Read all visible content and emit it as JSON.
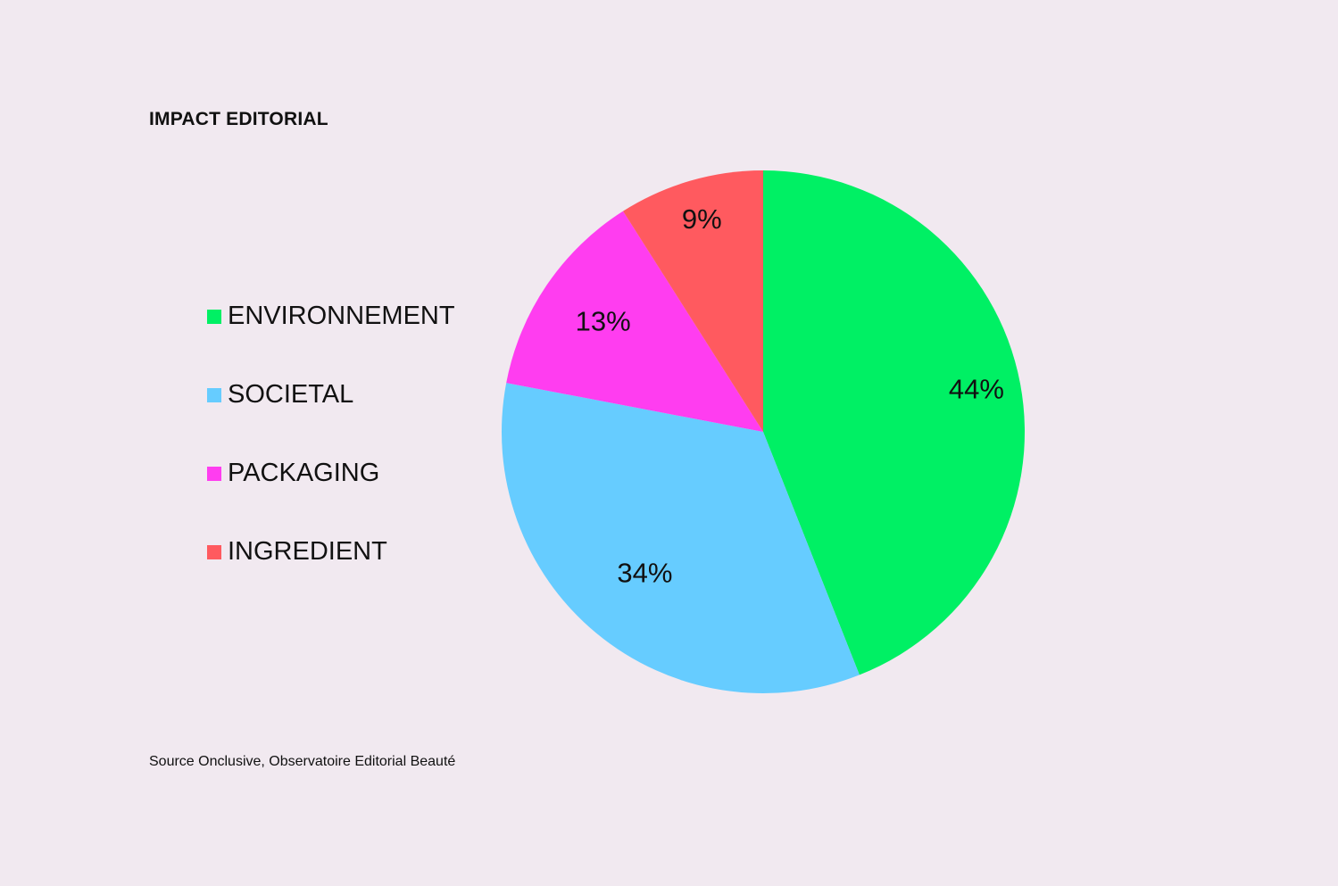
{
  "chart_data": {
    "type": "pie",
    "title": "IMPACT EDITORIAL",
    "categories": [
      "ENVIRONNEMENT",
      "SOCIETAL",
      "PACKAGING",
      "INGREDIENT"
    ],
    "values": [
      44,
      34,
      13,
      9
    ],
    "value_labels": [
      "44%",
      "34%",
      "13%",
      "9%"
    ],
    "colors": [
      "#00f064",
      "#66ccff",
      "#ff3df0",
      "#ff5a5f"
    ],
    "start_angle_deg": 0,
    "direction": "clockwise",
    "legend_position": "left",
    "source": "Source Onclusive, Observatoire Editorial Beauté"
  }
}
